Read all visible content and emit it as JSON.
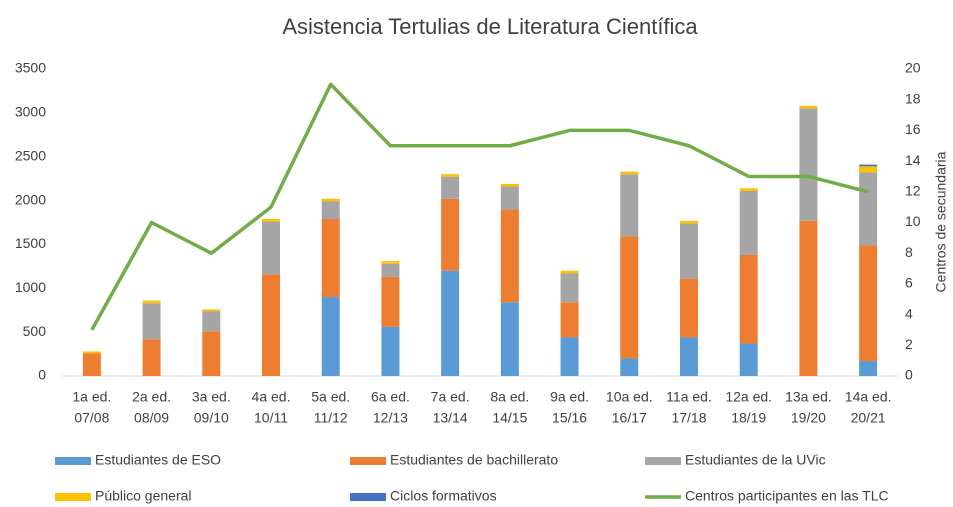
{
  "chart_data": {
    "type": "bar",
    "stacked": true,
    "title": "Asistencia Tertulias de Literatura Científica",
    "y2label": "Centros de secundaria",
    "categories": [
      [
        "1a ed.",
        "07/08"
      ],
      [
        "2a ed.",
        "08/09"
      ],
      [
        "3a ed.",
        "09/10"
      ],
      [
        "4a ed.",
        "10/11"
      ],
      [
        "5a ed.",
        "11/12"
      ],
      [
        "6a ed.",
        "12/13"
      ],
      [
        "7a ed.",
        "13/14"
      ],
      [
        "8a ed.",
        "14/15"
      ],
      [
        "9a ed.",
        "15/16"
      ],
      [
        "10a ed.",
        "16/17"
      ],
      [
        "11a ed.",
        "17/18"
      ],
      [
        "12a ed.",
        "18/19"
      ],
      [
        "13a ed.",
        "19/20"
      ],
      [
        "14a ed.",
        "20/21"
      ]
    ],
    "series": [
      {
        "name": "Estudiantes de ESO",
        "color": "#5b9bd5",
        "values": [
          0,
          0,
          0,
          0,
          900,
          560,
          1200,
          840,
          440,
          200,
          440,
          370,
          0,
          170
        ]
      },
      {
        "name": "Estudiantes de bachillerato",
        "color": "#ed7d31",
        "values": [
          260,
          420,
          510,
          1160,
          890,
          570,
          820,
          1060,
          400,
          1390,
          670,
          1010,
          1770,
          1320
        ]
      },
      {
        "name": "Estudiantes de la UVic",
        "color": "#a5a5a5",
        "values": [
          0,
          410,
          230,
          600,
          200,
          150,
          250,
          260,
          330,
          710,
          630,
          730,
          1280,
          830
        ]
      },
      {
        "name": "Público general",
        "color": "#ffc000",
        "values": [
          20,
          30,
          20,
          30,
          30,
          30,
          30,
          30,
          30,
          30,
          30,
          30,
          30,
          70
        ]
      },
      {
        "name": "Ciclos formativos",
        "color": "#4472c4",
        "values": [
          0,
          0,
          0,
          0,
          0,
          0,
          0,
          0,
          0,
          0,
          0,
          0,
          0,
          20
        ]
      },
      {
        "name": "Centros participantes en las TLC",
        "color": "#70ad47",
        "type": "line",
        "axis": "y2",
        "values": [
          3,
          10,
          8,
          11,
          19,
          15,
          15,
          15,
          16,
          16,
          15,
          13,
          13,
          12
        ]
      }
    ],
    "ylim": [
      0,
      3500
    ],
    "yticks": [
      0,
      500,
      1000,
      1500,
      2000,
      2500,
      3000,
      3500
    ],
    "y2lim": [
      0,
      20
    ],
    "y2ticks": [
      0,
      2,
      4,
      6,
      8,
      10,
      12,
      14,
      16,
      18,
      20
    ],
    "grid": false,
    "legend": "bottom"
  }
}
